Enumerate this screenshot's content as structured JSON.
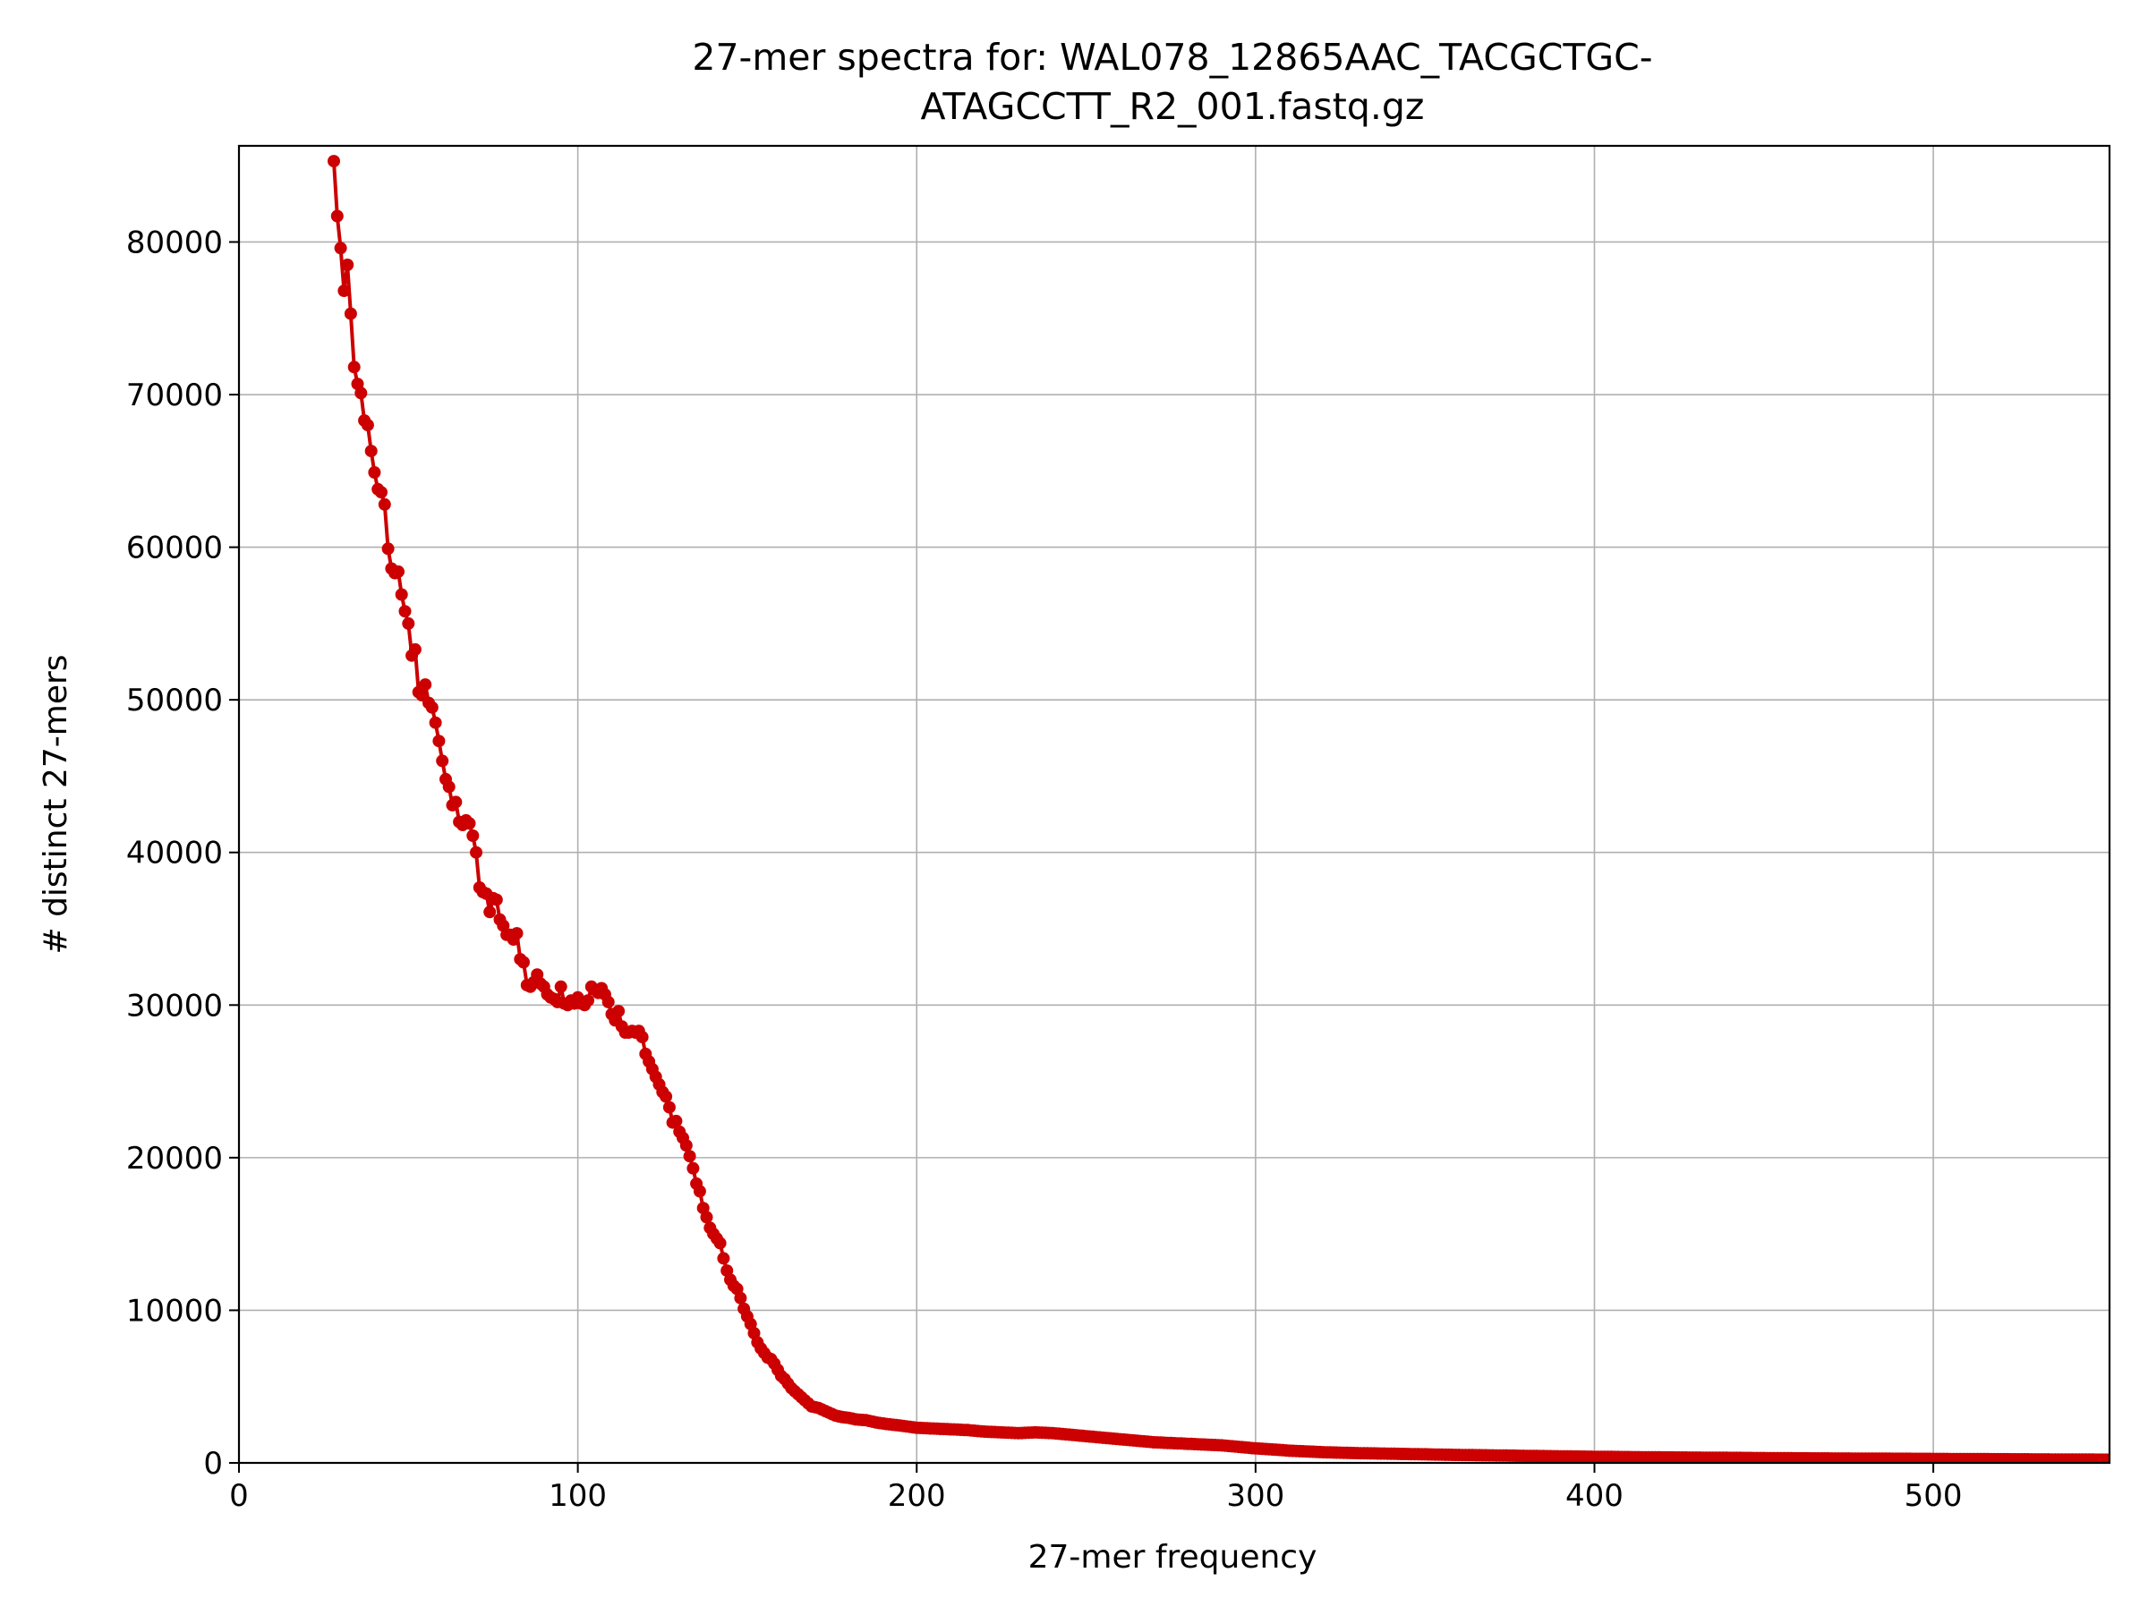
{
  "chart_data": {
    "type": "line",
    "title_lines": [
      "27-mer spectra for: WAL078_12865AAC_TACGCTGC-",
      "ATAGCCTT_R2_001.fastq.gz"
    ],
    "xlabel": "27-mer frequency",
    "ylabel": "# distinct 27-mers",
    "xlim": [
      0,
      552
    ],
    "ylim": [
      0,
      86300
    ],
    "xticks": [
      0,
      100,
      200,
      300,
      400,
      500
    ],
    "yticks": [
      0,
      10000,
      20000,
      30000,
      40000,
      50000,
      60000,
      70000,
      80000
    ],
    "grid": true,
    "series_color": "#cc0000",
    "grid_color": "#b0b0b0",
    "anchors": [
      [
        28,
        85300
      ],
      [
        29,
        81700
      ],
      [
        30,
        79600
      ],
      [
        31,
        76800
      ],
      [
        32,
        78500
      ],
      [
        33,
        75300
      ],
      [
        34,
        71800
      ],
      [
        35,
        70700
      ],
      [
        36,
        70100
      ],
      [
        37,
        68300
      ],
      [
        38,
        68000
      ],
      [
        39,
        66300
      ],
      [
        40,
        64900
      ],
      [
        41,
        63800
      ],
      [
        42,
        63600
      ],
      [
        43,
        62800
      ],
      [
        44,
        59900
      ],
      [
        45,
        58600
      ],
      [
        46,
        58300
      ],
      [
        47,
        58400
      ],
      [
        48,
        56900
      ],
      [
        49,
        55800
      ],
      [
        50,
        55000
      ],
      [
        51,
        52900
      ],
      [
        52,
        53300
      ],
      [
        53,
        50500
      ],
      [
        54,
        50300
      ],
      [
        55,
        51000
      ],
      [
        56,
        49800
      ],
      [
        57,
        49500
      ],
      [
        58,
        48500
      ],
      [
        59,
        47300
      ],
      [
        60,
        46000
      ],
      [
        61,
        44800
      ],
      [
        62,
        44300
      ],
      [
        63,
        43100
      ],
      [
        64,
        43300
      ],
      [
        65,
        42000
      ],
      [
        66,
        41800
      ],
      [
        67,
        42100
      ],
      [
        68,
        41900
      ],
      [
        69,
        41100
      ],
      [
        70,
        40000
      ],
      [
        71,
        37700
      ],
      [
        72,
        37400
      ],
      [
        73,
        37300
      ],
      [
        74,
        36100
      ],
      [
        75,
        37000
      ],
      [
        76,
        36900
      ],
      [
        77,
        35600
      ],
      [
        78,
        35200
      ],
      [
        79,
        34600
      ],
      [
        80,
        34600
      ],
      [
        81,
        34300
      ],
      [
        82,
        34700
      ],
      [
        83,
        33000
      ],
      [
        84,
        32800
      ],
      [
        85,
        31300
      ],
      [
        86,
        31200
      ],
      [
        87,
        31500
      ],
      [
        88,
        32000
      ],
      [
        89,
        31400
      ],
      [
        90,
        31200
      ],
      [
        91,
        30700
      ],
      [
        92,
        30500
      ],
      [
        93,
        30400
      ],
      [
        94,
        30200
      ],
      [
        95,
        31200
      ],
      [
        96,
        30100
      ],
      [
        97,
        30000
      ],
      [
        98,
        30300
      ],
      [
        99,
        30100
      ],
      [
        100,
        30500
      ],
      [
        101,
        30100
      ],
      [
        102,
        30000
      ],
      [
        103,
        30300
      ],
      [
        104,
        31200
      ],
      [
        105,
        31000
      ],
      [
        106,
        30800
      ],
      [
        107,
        31100
      ],
      [
        108,
        30700
      ],
      [
        109,
        30200
      ],
      [
        110,
        29400
      ],
      [
        111,
        29000
      ],
      [
        112,
        29600
      ],
      [
        113,
        28600
      ],
      [
        114,
        28200
      ],
      [
        115,
        28200
      ],
      [
        116,
        28300
      ],
      [
        117,
        28200
      ],
      [
        118,
        28300
      ],
      [
        119,
        27900
      ],
      [
        120,
        26800
      ],
      [
        121,
        26300
      ],
      [
        122,
        25800
      ],
      [
        123,
        25300
      ],
      [
        124,
        24800
      ],
      [
        125,
        24300
      ],
      [
        126,
        24000
      ],
      [
        127,
        23300
      ],
      [
        128,
        22300
      ],
      [
        129,
        22400
      ],
      [
        130,
        21700
      ],
      [
        131,
        21300
      ],
      [
        132,
        20800
      ],
      [
        133,
        20100
      ],
      [
        134,
        19300
      ],
      [
        135,
        18300
      ],
      [
        136,
        17800
      ],
      [
        137,
        16700
      ],
      [
        138,
        16100
      ],
      [
        139,
        15400
      ],
      [
        140,
        15000
      ],
      [
        141,
        14700
      ],
      [
        142,
        14400
      ],
      [
        143,
        13400
      ],
      [
        144,
        12600
      ],
      [
        145,
        12000
      ],
      [
        146,
        11600
      ],
      [
        147,
        11400
      ],
      [
        148,
        10800
      ],
      [
        149,
        10100
      ],
      [
        150,
        9600
      ],
      [
        151,
        9100
      ],
      [
        152,
        8500
      ],
      [
        153,
        7900
      ],
      [
        154,
        7500
      ],
      [
        155,
        7200
      ],
      [
        156,
        6900
      ],
      [
        157,
        6800
      ],
      [
        158,
        6500
      ],
      [
        159,
        6100
      ],
      [
        160,
        5700
      ],
      [
        161,
        5500
      ],
      [
        162,
        5200
      ],
      [
        163,
        4900
      ],
      [
        164,
        4700
      ],
      [
        165,
        4500
      ],
      [
        166,
        4300
      ],
      [
        167,
        4100
      ],
      [
        168,
        3900
      ],
      [
        169,
        3700
      ],
      [
        170,
        3650
      ],
      [
        171,
        3600
      ],
      [
        172,
        3500
      ],
      [
        174,
        3300
      ],
      [
        176,
        3100
      ],
      [
        178,
        3000
      ],
      [
        180,
        2950
      ],
      [
        182,
        2850
      ],
      [
        185,
        2800
      ],
      [
        188,
        2650
      ],
      [
        191,
        2550
      ],
      [
        195,
        2450
      ],
      [
        200,
        2300
      ],
      [
        205,
        2250
      ],
      [
        210,
        2200
      ],
      [
        215,
        2150
      ],
      [
        220,
        2050
      ],
      [
        225,
        2000
      ],
      [
        230,
        1950
      ],
      [
        235,
        2000
      ],
      [
        240,
        1950
      ],
      [
        245,
        1850
      ],
      [
        250,
        1750
      ],
      [
        255,
        1650
      ],
      [
        260,
        1550
      ],
      [
        265,
        1450
      ],
      [
        270,
        1350
      ],
      [
        275,
        1300
      ],
      [
        280,
        1250
      ],
      [
        285,
        1200
      ],
      [
        290,
        1150
      ],
      [
        295,
        1050
      ],
      [
        300,
        950
      ],
      [
        305,
        880
      ],
      [
        310,
        800
      ],
      [
        315,
        750
      ],
      [
        320,
        700
      ],
      [
        330,
        640
      ],
      [
        340,
        600
      ],
      [
        350,
        560
      ],
      [
        360,
        520
      ],
      [
        370,
        490
      ],
      [
        380,
        460
      ],
      [
        390,
        430
      ],
      [
        400,
        400
      ],
      [
        420,
        360
      ],
      [
        440,
        330
      ],
      [
        460,
        300
      ],
      [
        480,
        280
      ],
      [
        500,
        260
      ],
      [
        520,
        240
      ],
      [
        540,
        220
      ],
      [
        552,
        210
      ]
    ]
  }
}
